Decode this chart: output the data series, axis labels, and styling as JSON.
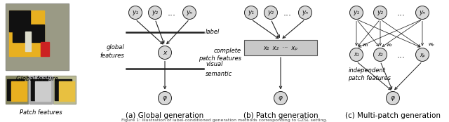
{
  "background_color": "#ffffff",
  "node_fill_color": "#d8d8d8",
  "node_edge_color": "#222222",
  "line_color": "#222222",
  "rect_fill_color": "#c8c8c8",
  "rect_edge_color": "#555555",
  "text_color": "#000000",
  "panels": [
    "(a) Global generation",
    "(b) Patch generation",
    "(c) Multi-patch generation"
  ],
  "y_labels": [
    "y₁",
    "y₂",
    "yₙ"
  ],
  "x_label": "x",
  "phi_label": "φ",
  "dots": "...",
  "label_text": "label",
  "global_features_text": "global\nfeatures",
  "visual_text": "visual",
  "semantic_text": "semantic",
  "complete_patch_text": "complete\npatch features",
  "independent_patch_text": "independent\npatch features",
  "w_labels": [
    "w₁",
    "w₂",
    "wₚ"
  ],
  "x_patch_labels": [
    "x₁",
    "x₂",
    "xₚ"
  ],
  "box_text": "x₁  x₂  ···  xₚ",
  "global_feature_caption": "Global feature",
  "patch_feature_caption": "Patch features",
  "font_size_node": 6.5,
  "font_size_label": 6.0,
  "font_size_caption": 7.5,
  "font_size_wlabel": 5.0
}
